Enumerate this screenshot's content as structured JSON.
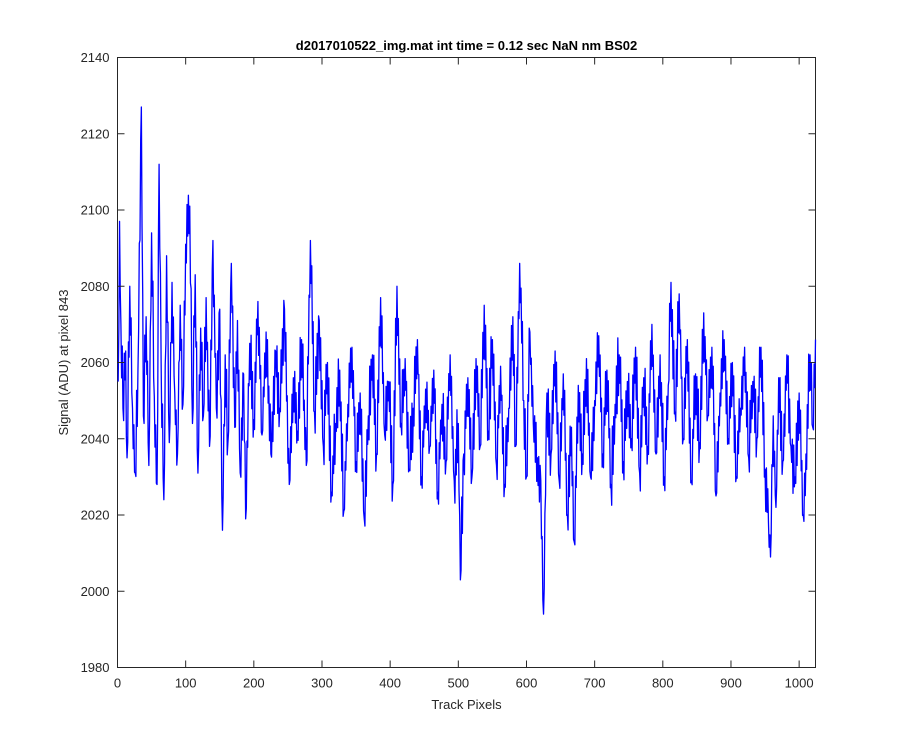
{
  "chart_data": {
    "type": "line",
    "title": "d2017010522_img.mat int time = 0.12 sec  NaN nm BS02",
    "xlabel": "Track Pixels",
    "ylabel": "Signal (ADU) at pixel 843",
    "xlim": [
      0,
      1024
    ],
    "ylim": [
      1980,
      2140
    ],
    "xticks": [
      0,
      100,
      200,
      300,
      400,
      500,
      600,
      700,
      800,
      900,
      1000
    ],
    "yticks": [
      1980,
      2000,
      2020,
      2040,
      2060,
      2080,
      2100,
      2120,
      2140
    ],
    "grid": false,
    "legend": "none",
    "series": [
      {
        "color": "#0000ff",
        "x_start": 1,
        "x_step": 1,
        "anchors": [
          [
            1,
            2055
          ],
          [
            3,
            2097
          ],
          [
            5,
            2070
          ],
          [
            8,
            2048
          ],
          [
            12,
            2063
          ],
          [
            14,
            2035
          ],
          [
            18,
            2080
          ],
          [
            22,
            2048
          ],
          [
            26,
            2031
          ],
          [
            30,
            2058
          ],
          [
            35,
            2127
          ],
          [
            38,
            2046
          ],
          [
            42,
            2072
          ],
          [
            46,
            2033
          ],
          [
            50,
            2094
          ],
          [
            54,
            2051
          ],
          [
            58,
            2028
          ],
          [
            61,
            2112
          ],
          [
            64,
            2060
          ],
          [
            68,
            2024
          ],
          [
            72,
            2088
          ],
          [
            76,
            2039
          ],
          [
            80,
            2081
          ],
          [
            84,
            2052
          ],
          [
            88,
            2036
          ],
          [
            92,
            2075
          ],
          [
            96,
            2049
          ],
          [
            100,
            2091
          ],
          [
            106,
            2101
          ],
          [
            110,
            2044
          ],
          [
            114,
            2083
          ],
          [
            118,
            2031
          ],
          [
            122,
            2069
          ],
          [
            126,
            2046
          ],
          [
            130,
            2077
          ],
          [
            135,
            2038
          ],
          [
            140,
            2092
          ],
          [
            145,
            2048
          ],
          [
            150,
            2074
          ],
          [
            154,
            2016
          ],
          [
            158,
            2062
          ],
          [
            162,
            2039
          ],
          [
            167,
            2086
          ],
          [
            172,
            2043
          ],
          [
            176,
            2071
          ],
          [
            180,
            2031
          ],
          [
            185,
            2057
          ],
          [
            188,
            2019
          ],
          [
            194,
            2065
          ],
          [
            200,
            2045
          ],
          [
            206,
            2076
          ],
          [
            212,
            2041
          ],
          [
            218,
            2068
          ],
          [
            225,
            2036
          ],
          [
            232,
            2063
          ],
          [
            238,
            2048
          ],
          [
            245,
            2074
          ],
          [
            252,
            2028
          ],
          [
            258,
            2056
          ],
          [
            264,
            2042
          ],
          [
            270,
            2066
          ],
          [
            277,
            2033
          ],
          [
            283,
            2092
          ],
          [
            289,
            2047
          ],
          [
            296,
            2071
          ],
          [
            302,
            2038
          ],
          [
            308,
            2060
          ],
          [
            314,
            2026
          ],
          [
            320,
            2044
          ],
          [
            326,
            2058
          ],
          [
            332,
            2021
          ],
          [
            338,
            2049
          ],
          [
            344,
            2064
          ],
          [
            350,
            2034
          ],
          [
            356,
            2052
          ],
          [
            362,
            2019
          ],
          [
            368,
            2046
          ],
          [
            374,
            2062
          ],
          [
            380,
            2036
          ],
          [
            386,
            2077
          ],
          [
            392,
            2041
          ],
          [
            398,
            2055
          ],
          [
            404,
            2028
          ],
          [
            410,
            2080
          ],
          [
            416,
            2044
          ],
          [
            422,
            2061
          ],
          [
            428,
            2032
          ],
          [
            434,
            2048
          ],
          [
            440,
            2066
          ],
          [
            446,
            2030
          ],
          [
            452,
            2053
          ],
          [
            458,
            2038
          ],
          [
            464,
            2058
          ],
          [
            470,
            2026
          ],
          [
            476,
            2049
          ],
          [
            482,
            2034
          ],
          [
            488,
            2062
          ],
          [
            494,
            2029
          ],
          [
            500,
            2044
          ],
          [
            503,
            2003
          ],
          [
            508,
            2036
          ],
          [
            514,
            2056
          ],
          [
            520,
            2030
          ],
          [
            526,
            2061
          ],
          [
            532,
            2038
          ],
          [
            538,
            2075
          ],
          [
            544,
            2042
          ],
          [
            550,
            2066
          ],
          [
            556,
            2033
          ],
          [
            562,
            2059
          ],
          [
            568,
            2028
          ],
          [
            574,
            2048
          ],
          [
            580,
            2072
          ],
          [
            584,
            2038
          ],
          [
            590,
            2086
          ],
          [
            596,
            2050
          ],
          [
            600,
            2030
          ],
          [
            605,
            2068
          ],
          [
            610,
            2044
          ],
          [
            616,
            2035
          ],
          [
            621,
            2029
          ],
          [
            625,
            1994
          ],
          [
            630,
            2052
          ],
          [
            636,
            2036
          ],
          [
            642,
            2063
          ],
          [
            648,
            2029
          ],
          [
            654,
            2057
          ],
          [
            660,
            2020
          ],
          [
            666,
            2043
          ],
          [
            670,
            2013
          ],
          [
            676,
            2054
          ],
          [
            682,
            2036
          ],
          [
            688,
            2061
          ],
          [
            694,
            2030
          ],
          [
            700,
            2050
          ],
          [
            706,
            2067
          ],
          [
            712,
            2036
          ],
          [
            718,
            2058
          ],
          [
            724,
            2028
          ],
          [
            730,
            2049
          ],
          [
            736,
            2062
          ],
          [
            742,
            2034
          ],
          [
            748,
            2055
          ],
          [
            754,
            2040
          ],
          [
            760,
            2064
          ],
          [
            766,
            2031
          ],
          [
            772,
            2056
          ],
          [
            778,
            2038
          ],
          [
            784,
            2070
          ],
          [
            790,
            2036
          ],
          [
            796,
            2062
          ],
          [
            802,
            2030
          ],
          [
            808,
            2054
          ],
          [
            812,
            2081
          ],
          [
            818,
            2047
          ],
          [
            824,
            2078
          ],
          [
            830,
            2040
          ],
          [
            836,
            2066
          ],
          [
            842,
            2029
          ],
          [
            848,
            2057
          ],
          [
            854,
            2039
          ],
          [
            860,
            2073
          ],
          [
            866,
            2046
          ],
          [
            872,
            2064
          ],
          [
            878,
            2025
          ],
          [
            884,
            2052
          ],
          [
            890,
            2066
          ],
          [
            896,
            2040
          ],
          [
            902,
            2060
          ],
          [
            908,
            2030
          ],
          [
            914,
            2048
          ],
          [
            920,
            2064
          ],
          [
            926,
            2035
          ],
          [
            932,
            2055
          ],
          [
            938,
            2040
          ],
          [
            944,
            2064
          ],
          [
            950,
            2032
          ],
          [
            955,
            2018
          ],
          [
            958,
            2009
          ],
          [
            962,
            2046
          ],
          [
            966,
            2022
          ],
          [
            970,
            2056
          ],
          [
            976,
            2034
          ],
          [
            982,
            2062
          ],
          [
            988,
            2038
          ],
          [
            994,
            2030
          ],
          [
            1000,
            2052
          ],
          [
            1006,
            2020
          ],
          [
            1010,
            2036
          ],
          [
            1016,
            2062
          ],
          [
            1020,
            2043
          ],
          [
            1024,
            2066
          ]
        ]
      }
    ]
  }
}
